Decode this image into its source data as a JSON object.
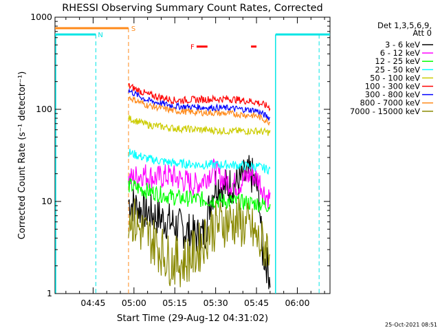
{
  "chart_data": {
    "type": "line",
    "title": "RHESSI Observing Summary Count Rates, Corrected",
    "xlabel": "Start Time (29-Aug-12 04:31:02)",
    "ylabel": "Corrected Count Rate (s⁻¹ detector⁻¹)",
    "y_scale": "log",
    "ylim": [
      1,
      1000
    ],
    "xlim": [
      "04:31",
      "06:12"
    ],
    "x_ticks": [
      "04:45",
      "05:00",
      "05:15",
      "05:30",
      "05:45",
      "06:00"
    ],
    "y_ticks": [
      "1",
      "10",
      "100",
      "1000"
    ],
    "legend_title": "Det 1,3,5,6,9,",
    "legend_subtitle": "Att 0",
    "legend_position": "right",
    "footer_date": "25-Oct-2021 08:51",
    "flags": {
      "night_label": "N",
      "saa_label": "S",
      "flare_label": "F",
      "night_color": "#00e5e5",
      "saa_color": "#ff8a1a",
      "flare_color": "#ff0000"
    },
    "series": [
      {
        "name": "3 - 6 keV",
        "color": "#000000",
        "times": [
          "04:58",
          "05:03",
          "05:08",
          "05:13",
          "05:18",
          "05:23",
          "05:26",
          "05:28",
          "05:30",
          "05:33",
          "05:38",
          "05:43",
          "05:46",
          "05:47",
          "05:49",
          "05:50"
        ],
        "values": [
          10,
          8,
          7,
          6,
          5,
          4.2,
          4.5,
          10,
          16,
          14,
          16,
          20,
          12,
          3,
          2,
          1.6
        ]
      },
      {
        "name": "6 - 12 keV",
        "color": "#ff00ff",
        "times": [
          "04:58",
          "05:03",
          "05:08",
          "05:13",
          "05:18",
          "05:23",
          "05:26",
          "05:29",
          "05:33",
          "05:38",
          "05:43",
          "05:46",
          "05:48",
          "05:50"
        ],
        "values": [
          17,
          20,
          18,
          19,
          17,
          15,
          18,
          22,
          17,
          15,
          20,
          17,
          12,
          11
        ]
      },
      {
        "name": "12 - 25 keV",
        "color": "#00ff00",
        "times": [
          "04:58",
          "05:05",
          "05:15",
          "05:25",
          "05:35",
          "05:45",
          "05:50"
        ],
        "values": [
          15,
          13,
          11,
          10.5,
          10,
          9.5,
          9
        ]
      },
      {
        "name": "25 - 50 keV",
        "color": "#00ffff",
        "times": [
          "04:58",
          "05:05",
          "05:15",
          "05:25",
          "05:35",
          "05:45",
          "05:50"
        ],
        "values": [
          34,
          29,
          26,
          25,
          25,
          24,
          22
        ]
      },
      {
        "name": "50 - 100 keV",
        "color": "#cccc00",
        "times": [
          "04:58",
          "05:05",
          "05:15",
          "05:25",
          "05:35",
          "05:45",
          "05:50"
        ],
        "values": [
          80,
          68,
          62,
          60,
          58,
          58,
          56
        ]
      },
      {
        "name": "100 - 300 keV",
        "color": "#ff0000",
        "times": [
          "04:58",
          "05:05",
          "05:15",
          "05:25",
          "05:35",
          "05:45",
          "05:50"
        ],
        "values": [
          180,
          145,
          125,
          128,
          130,
          120,
          105
        ]
      },
      {
        "name": "300 - 800 keV",
        "color": "#0000ff",
        "times": [
          "04:58",
          "05:05",
          "05:15",
          "05:25",
          "05:35",
          "05:45",
          "05:50"
        ],
        "values": [
          160,
          125,
          108,
          105,
          103,
          97,
          80
        ]
      },
      {
        "name": "800 - 7000 keV",
        "color": "#ff8a1a",
        "times": [
          "04:58",
          "05:05",
          "05:15",
          "05:25",
          "05:35",
          "05:45",
          "05:50"
        ],
        "values": [
          135,
          110,
          96,
          92,
          90,
          85,
          72
        ]
      },
      {
        "name": "7000 - 15000 keV",
        "color": "#888800",
        "times": [
          "04:58",
          "05:02",
          "05:08",
          "05:13",
          "05:18",
          "05:23",
          "05:28",
          "05:33",
          "05:38",
          "05:43",
          "05:46",
          "05:50"
        ],
        "values": [
          7.5,
          5,
          3.5,
          2.3,
          2.2,
          2.8,
          5,
          6,
          6,
          5,
          3.5,
          3.2
        ]
      }
    ]
  }
}
